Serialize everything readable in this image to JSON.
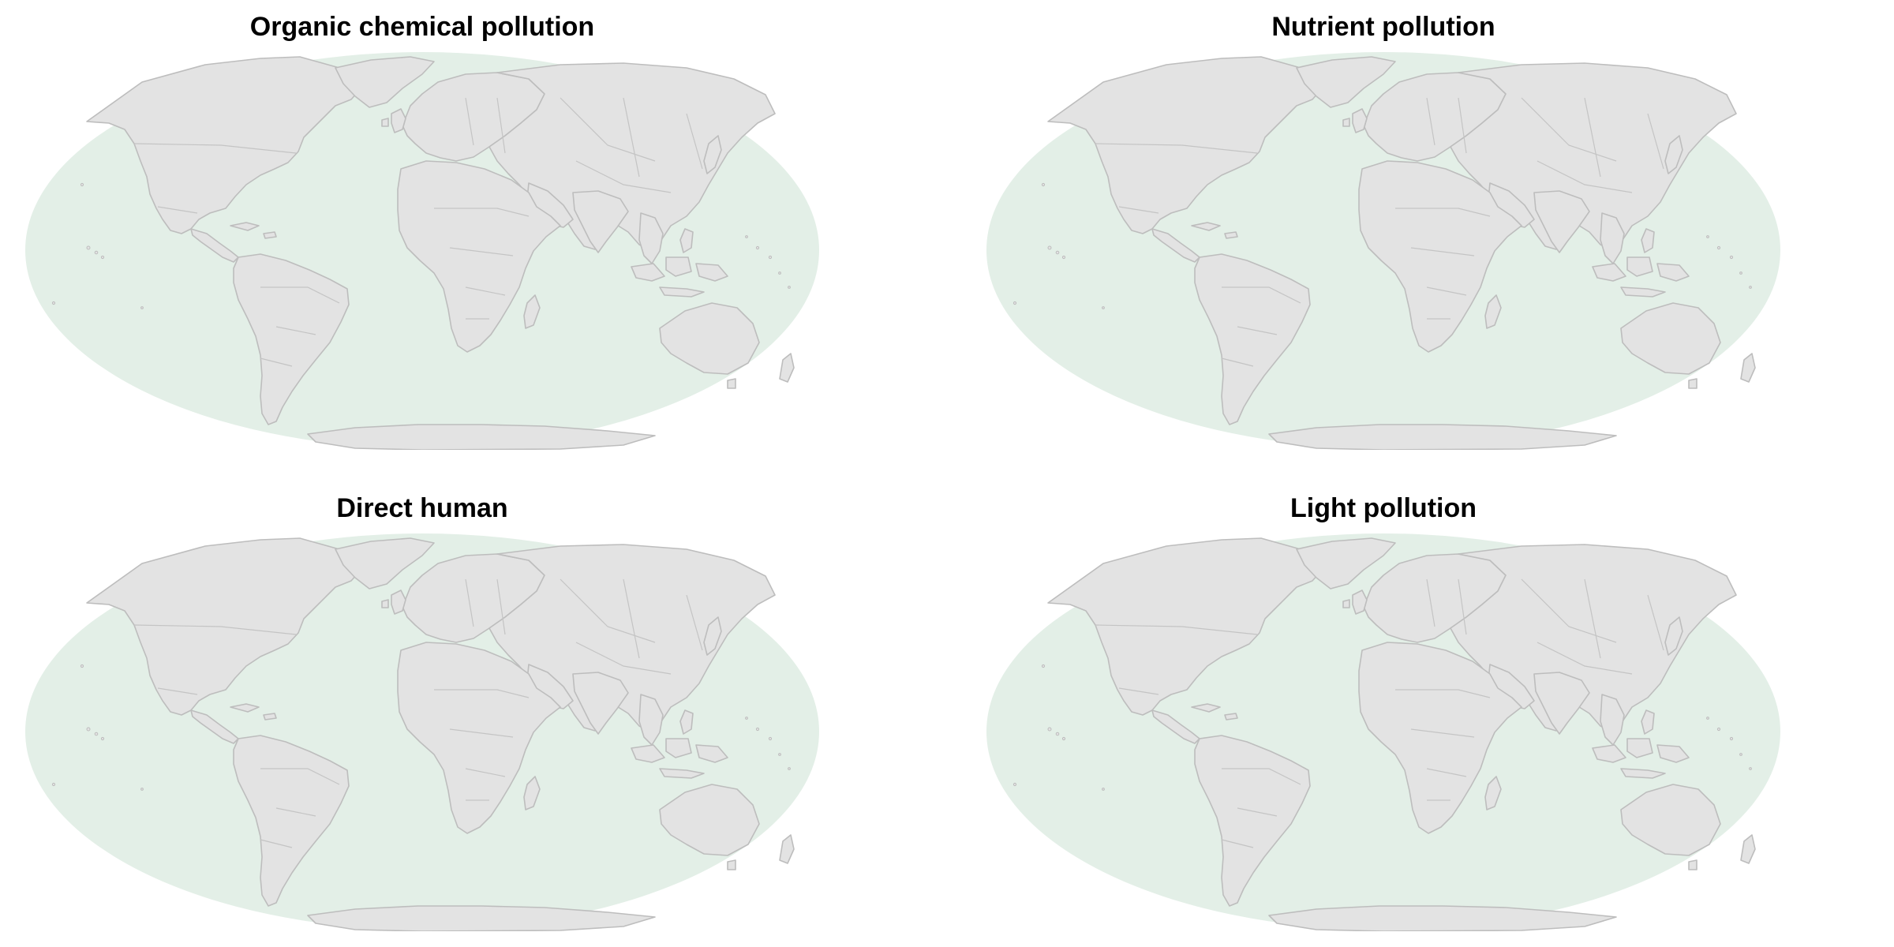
{
  "colors": {
    "ocean": "#e3efe7",
    "land": "#e3e3e3",
    "border": "#c4c4c4",
    "coast": "#bdbdbd",
    "title": "#000000"
  },
  "panels": [
    {
      "title": "Organic chemical pollution"
    },
    {
      "title": "Nutrient pollution"
    },
    {
      "title": "Direct human"
    },
    {
      "title": "Light pollution"
    }
  ]
}
